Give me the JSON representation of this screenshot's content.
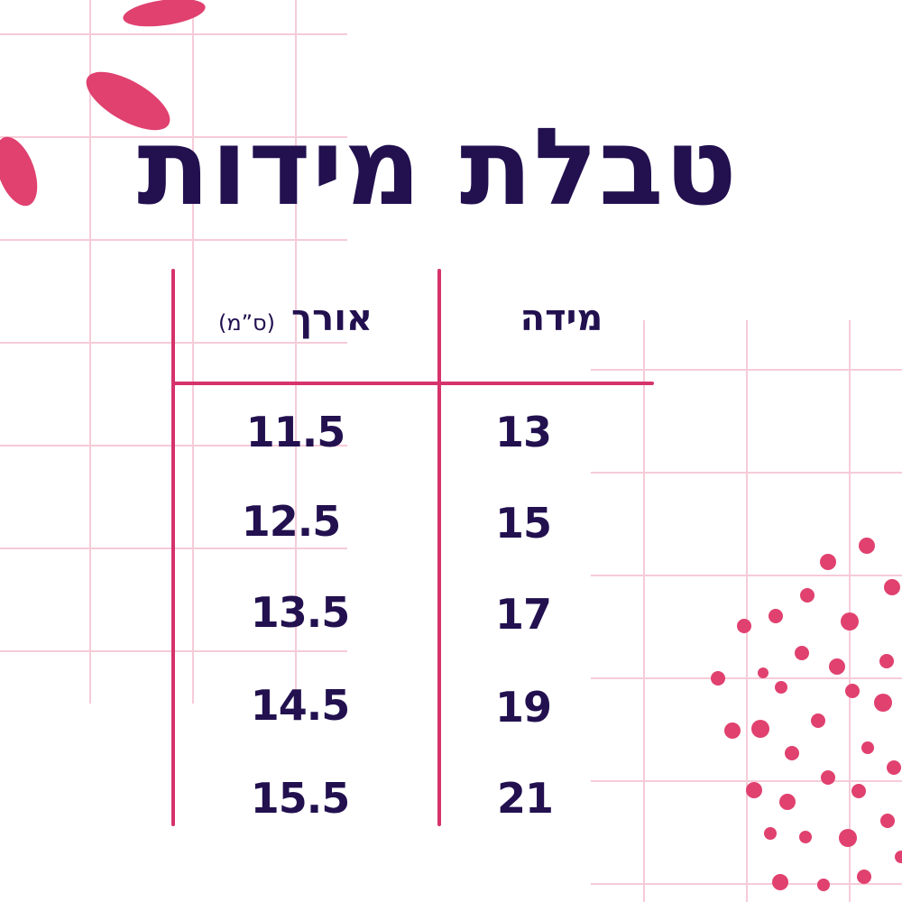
{
  "title": "טבלת מידות",
  "table": {
    "size_header": "מידה",
    "length_header": "אורך",
    "length_unit": "(ס”מ)",
    "rows": [
      {
        "size": "13",
        "length": "11.5"
      },
      {
        "size": "15",
        "length": "12.5"
      },
      {
        "size": "17",
        "length": "13.5"
      },
      {
        "size": "19",
        "length": "14.5"
      },
      {
        "size": "21",
        "length": "15.5"
      }
    ]
  },
  "colors": {
    "text": "#22104f",
    "accent": "#d6336c",
    "grid": "#f5c6d3",
    "background": "#ffffff"
  }
}
